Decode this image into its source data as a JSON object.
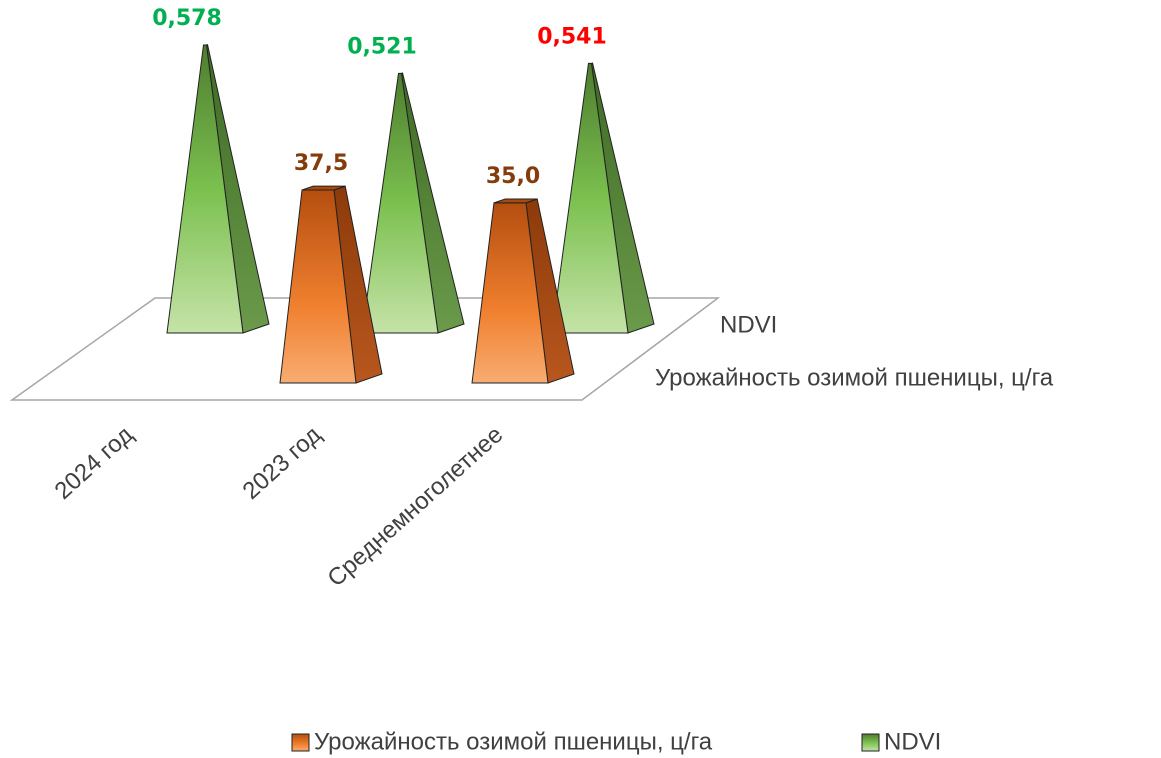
{
  "chart_data": {
    "type": "pyramid3d",
    "categories": [
      "2024 год",
      "2023 год",
      "Среднемноголетнее"
    ],
    "series": [
      {
        "name": "Урожайность озимой пшеницы, ц/га",
        "color": "#ed7d31",
        "values": [
          null,
          37.5,
          35.0
        ],
        "value_labels": [
          null,
          "37,5",
          "35,0"
        ],
        "label_colors": [
          null,
          "#843c0c",
          "#843c0c"
        ]
      },
      {
        "name": "NDVI",
        "color": "#70ad47",
        "values": [
          0.578,
          0.521,
          0.541
        ],
        "value_labels": [
          "0,578",
          "0,521",
          "0,541"
        ],
        "label_colors": [
          "#00b050",
          "#00b050",
          "#ff0000"
        ]
      }
    ],
    "legend": "bottom"
  }
}
